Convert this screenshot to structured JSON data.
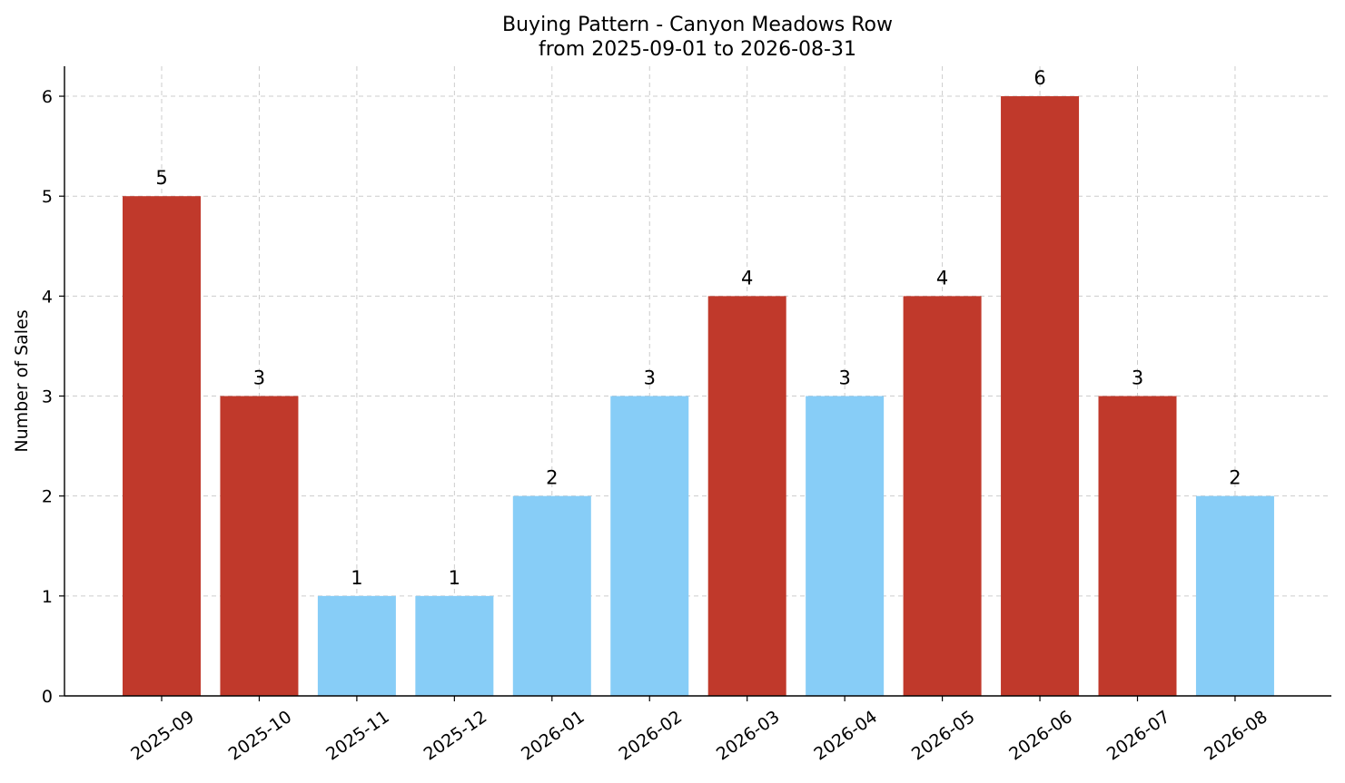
{
  "chart_data": {
    "type": "bar",
    "title": "Buying Pattern - Canyon Meadows Row",
    "subtitle": "from 2025-09-01 to 2026-08-31",
    "xlabel": "",
    "ylabel": "Number of Sales",
    "categories": [
      "2025-09",
      "2025-10",
      "2025-11",
      "2025-12",
      "2026-01",
      "2026-02",
      "2026-03",
      "2026-04",
      "2026-05",
      "2026-06",
      "2026-07",
      "2026-08"
    ],
    "values": [
      5,
      3,
      1,
      1,
      2,
      3,
      4,
      3,
      4,
      6,
      3,
      2
    ],
    "bar_colors": [
      "#c0392b",
      "#c0392b",
      "#87cdf7",
      "#87cdf7",
      "#87cdf7",
      "#87cdf7",
      "#c0392b",
      "#87cdf7",
      "#c0392b",
      "#c0392b",
      "#c0392b",
      "#87cdf7"
    ],
    "ylim": [
      0,
      6.3
    ],
    "yticks": [
      0,
      1,
      2,
      3,
      4,
      5,
      6
    ],
    "grid": true
  }
}
